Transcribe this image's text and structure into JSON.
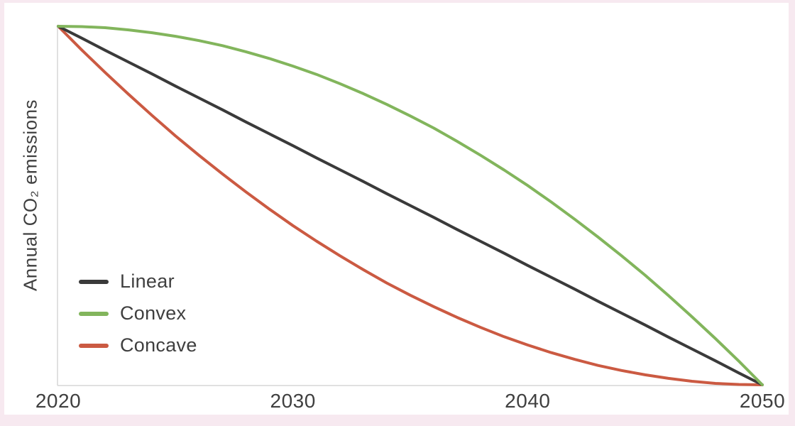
{
  "colors": {
    "background": "#f7e9f0",
    "panel": "#ffffff",
    "axis": "#d5d5d5",
    "text": "#3f3f3f"
  },
  "chart_data": {
    "type": "line",
    "title": "",
    "xlabel": "",
    "ylabel": "Annual CO₂ emissions",
    "x_range": [
      2020,
      2050
    ],
    "x_ticks": [
      2020,
      2030,
      2040,
      2050
    ],
    "x_tick_labels": [
      "2020",
      "2030",
      "2040",
      "2050"
    ],
    "y_ticks": [],
    "y_max": 100,
    "y_min": 0,
    "y_units": "relative annual emissions (100 = 2020 level, 0 = net zero in 2050)",
    "grid": false,
    "legend_position": "inside lower-left",
    "x": [
      2020,
      2021,
      2022,
      2023,
      2024,
      2025,
      2026,
      2027,
      2028,
      2029,
      2030,
      2031,
      2032,
      2033,
      2034,
      2035,
      2036,
      2037,
      2038,
      2039,
      2040,
      2041,
      2042,
      2043,
      2044,
      2045,
      2046,
      2047,
      2048,
      2049,
      2050
    ],
    "series": [
      {
        "name": "Concave",
        "color": "#cb5a42",
        "values": [
          100,
          93.4,
          87.1,
          81.0,
          75.1,
          69.4,
          64.0,
          58.8,
          53.8,
          49.0,
          44.4,
          40.1,
          36.0,
          32.1,
          28.4,
          25.0,
          21.8,
          18.8,
          16.0,
          13.4,
          11.1,
          9.0,
          7.1,
          5.4,
          4.0,
          2.8,
          1.8,
          1.0,
          0.4,
          0.1,
          0
        ]
      },
      {
        "name": "Linear",
        "color": "#3a3a3a",
        "values": [
          100,
          96.7,
          93.3,
          90.0,
          86.7,
          83.3,
          80.0,
          76.7,
          73.3,
          70.0,
          66.7,
          63.3,
          60.0,
          56.7,
          53.3,
          50.0,
          46.7,
          43.3,
          40.0,
          36.7,
          33.3,
          30.0,
          26.7,
          23.3,
          20.0,
          16.7,
          13.3,
          10.0,
          6.7,
          3.3,
          0
        ]
      },
      {
        "name": "Convex",
        "color": "#82b55c",
        "values": [
          100,
          99.9,
          99.6,
          99.0,
          98.2,
          97.2,
          96.0,
          94.6,
          92.9,
          91.0,
          88.9,
          86.6,
          84.0,
          81.2,
          78.2,
          75.0,
          71.6,
          67.9,
          64.0,
          59.9,
          55.6,
          51.0,
          46.2,
          41.2,
          36.0,
          30.6,
          24.9,
          19.0,
          12.9,
          6.6,
          0
        ]
      }
    ],
    "legend_order": [
      "Linear",
      "Convex",
      "Concave"
    ]
  },
  "legend": {
    "items": [
      {
        "label": "Linear"
      },
      {
        "label": "Convex"
      },
      {
        "label": "Concave"
      }
    ]
  }
}
